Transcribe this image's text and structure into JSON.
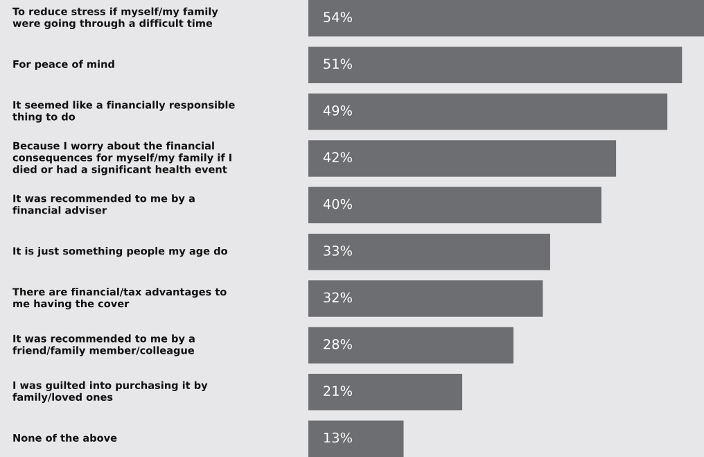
{
  "chart_data": {
    "type": "bar",
    "orientation": "horizontal",
    "tick_labels": false,
    "categories": [
      "To reduce stress if myself/my family\nwere going through a difficult time",
      "For peace of mind",
      "It seemed like a financially responsible\nthing to do",
      "Because I worry about the financial\nconsequences for myself/my family if I\ndied or had a significant health event",
      "It was recommended to me by a\nfinancial adviser",
      "It is just something people my age do",
      "There are financial/tax advantages to\nme having the cover",
      "It was recommended to me by a\nfriend/family member/colleague",
      "I was guilted into purchasing it by\nfamily/loved ones",
      "None of the above"
    ],
    "values": [
      54,
      51,
      49,
      42,
      40,
      33,
      32,
      28,
      21,
      13
    ],
    "value_labels": [
      "54%",
      "51%",
      "49%",
      "42%",
      "40%",
      "33%",
      "32%",
      "28%",
      "21%",
      "13%"
    ],
    "color": "#6d6e71"
  }
}
